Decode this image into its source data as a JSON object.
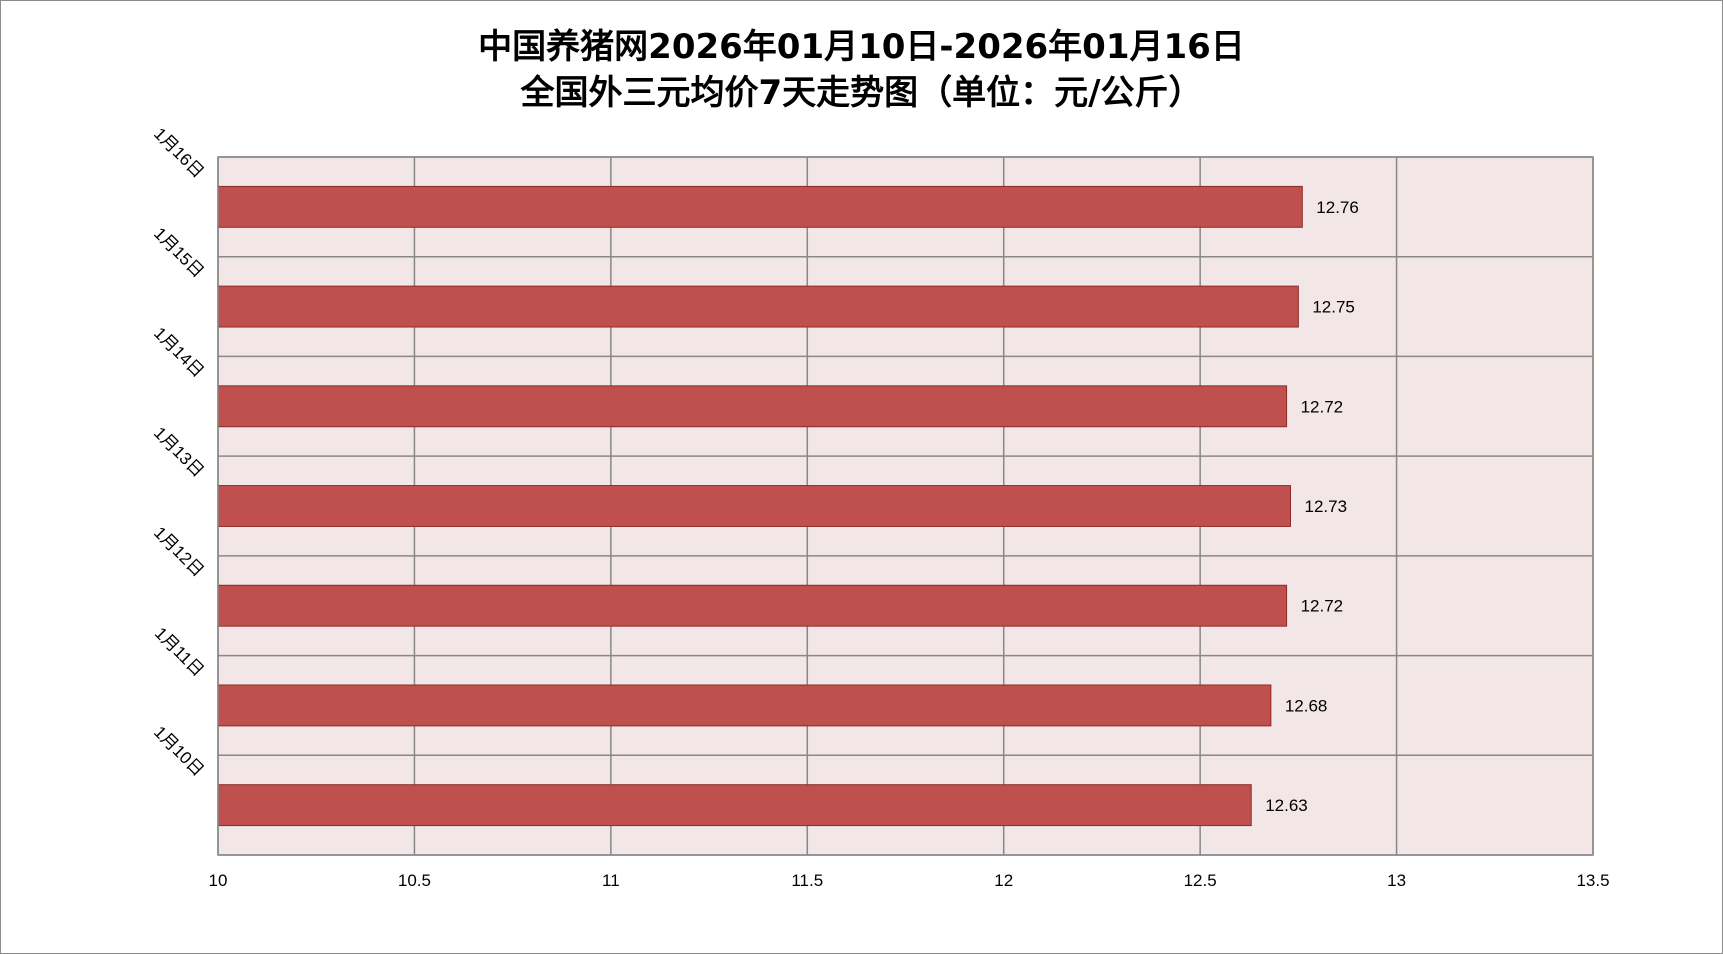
{
  "chart_data": {
    "type": "bar",
    "orientation": "horizontal",
    "title_line_1": "中国养猪网2026年01月10日-2026年01月16日",
    "title_line_2": "全国外三元均价7天走势图（单位：元/公斤）",
    "categories": [
      "1月16日",
      "1月15日",
      "1月14日",
      "1月13日",
      "1月12日",
      "1月11日",
      "1月10日"
    ],
    "values": [
      12.76,
      12.75,
      12.72,
      12.73,
      12.72,
      12.68,
      12.63
    ],
    "value_labels": [
      "12.76",
      "12.75",
      "12.72",
      "12.73",
      "12.72",
      "12.68",
      "12.63"
    ],
    "xlim": [
      10,
      13.5
    ],
    "x_ticks": [
      "10",
      "10.5",
      "11",
      "11.5",
      "12",
      "12.5",
      "13",
      "13.5"
    ],
    "tick_step": 0.5,
    "grid": true,
    "legend": "none",
    "bar_color": "#c0504d",
    "bar_edge_color": "#8b2b29",
    "plot_background": "#f2e6e6",
    "grid_color": "#888888"
  }
}
